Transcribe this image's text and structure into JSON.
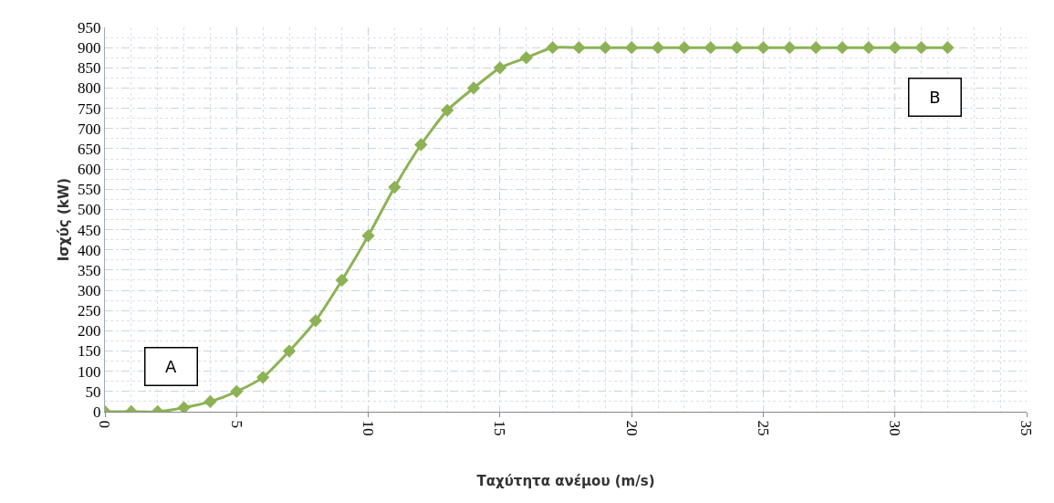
{
  "chart_data": {
    "type": "line",
    "xlabel": "Ταχύτητα ανέμου (m/s)",
    "ylabel": "Ισχύς (kW)",
    "x": [
      0,
      1,
      2,
      3,
      4,
      5,
      6,
      7,
      8,
      9,
      10,
      11,
      12,
      13,
      14,
      15,
      16,
      17,
      18,
      19,
      20,
      21,
      22,
      23,
      24,
      25,
      26,
      27,
      28,
      29,
      30,
      31,
      32
    ],
    "series": [
      {
        "color": "#8db255",
        "values": [
          0,
          0,
          0,
          10,
          25,
          50,
          85,
          150,
          225,
          325,
          435,
          555,
          660,
          745,
          800,
          850,
          875,
          900,
          900,
          900,
          900,
          900,
          900,
          900,
          900,
          900,
          900,
          900,
          900,
          900,
          900,
          900,
          900
        ]
      }
    ],
    "xlim": [
      0,
      35
    ],
    "xticks": [
      0,
      5,
      10,
      15,
      20,
      25,
      30,
      35
    ],
    "ylim": [
      0,
      950
    ],
    "yticks": [
      0,
      50,
      100,
      150,
      200,
      250,
      300,
      350,
      400,
      450,
      500,
      550,
      600,
      650,
      700,
      750,
      800,
      850,
      900,
      950
    ],
    "grid": true,
    "marker": "diamond",
    "line_style": "solid",
    "annotations": [
      "A",
      "B"
    ]
  }
}
